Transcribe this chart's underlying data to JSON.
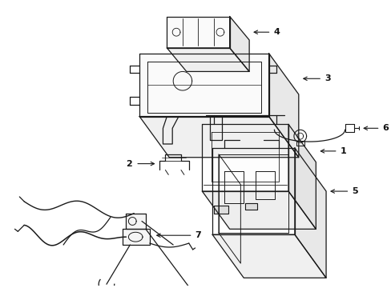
{
  "background_color": "#ffffff",
  "line_color": "#1a1a1a",
  "label_color": "#111111",
  "figsize": [
    4.89,
    3.6
  ],
  "dpi": 100
}
